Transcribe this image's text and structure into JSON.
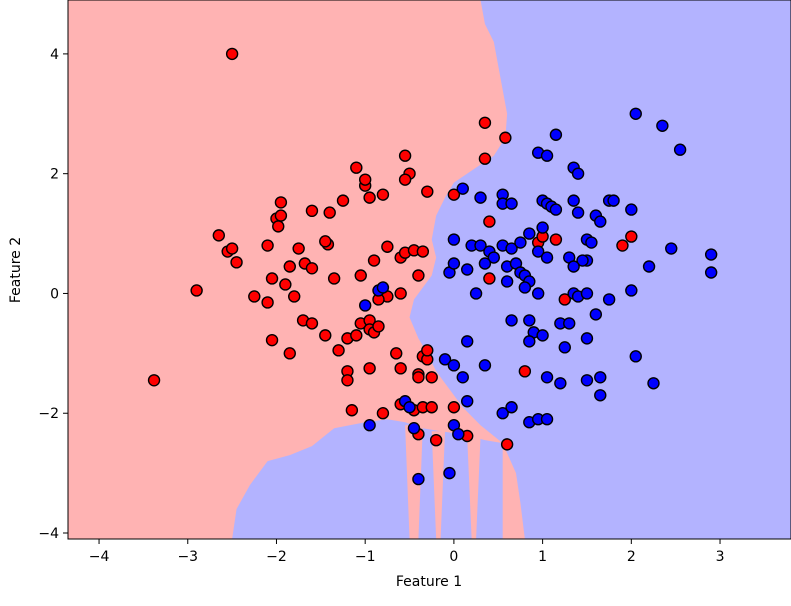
{
  "chart_data": {
    "type": "scatter",
    "title": "",
    "xlabel": "Feature 1",
    "ylabel": "Feature 2",
    "xlim": [
      -4.35,
      3.8
    ],
    "ylim": [
      -4.1,
      4.9
    ],
    "x_ticks": [
      -4,
      -3,
      -2,
      -1,
      0,
      1,
      2,
      3
    ],
    "y_ticks": [
      -4,
      -2,
      0,
      2,
      4
    ],
    "x_tick_labels": [
      "−4",
      "−3",
      "−2",
      "−1",
      "0",
      "1",
      "2",
      "3"
    ],
    "y_tick_labels": [
      "−4",
      "−2",
      "0",
      "2",
      "4"
    ],
    "grid": false,
    "legend": "none",
    "decision_regions": {
      "class_0_color": "#ffb3b3",
      "class_1_color": "#b3b3ff",
      "boundary_main": [
        [
          0.3,
          4.9
        ],
        [
          0.35,
          4.5
        ],
        [
          0.45,
          4.2
        ],
        [
          0.5,
          3.8
        ],
        [
          0.55,
          3.4
        ],
        [
          0.6,
          3.0
        ],
        [
          0.58,
          2.6
        ],
        [
          0.45,
          2.3
        ],
        [
          0.2,
          2.05
        ],
        [
          0.0,
          1.85
        ],
        [
          -0.1,
          1.6
        ],
        [
          -0.2,
          1.3
        ],
        [
          -0.25,
          0.9
        ],
        [
          -0.2,
          0.6
        ],
        [
          -0.25,
          0.3
        ],
        [
          -0.35,
          0.1
        ],
        [
          -0.45,
          -0.1
        ],
        [
          -0.5,
          -0.4
        ],
        [
          -0.4,
          -0.75
        ],
        [
          -0.3,
          -1.0
        ],
        [
          -0.2,
          -1.3
        ],
        [
          -0.05,
          -1.6
        ],
        [
          0.1,
          -1.9
        ],
        [
          0.3,
          -2.2
        ],
        [
          0.55,
          -2.5
        ],
        [
          0.7,
          -3.0
        ],
        [
          0.75,
          -3.5
        ],
        [
          0.8,
          -4.1
        ]
      ],
      "boundary_lower_blue": [
        [
          0.55,
          -2.5
        ],
        [
          0.35,
          -2.45
        ],
        [
          0.1,
          -2.35
        ],
        [
          -0.15,
          -2.3
        ],
        [
          -0.35,
          -2.25
        ],
        [
          -0.55,
          -2.15
        ],
        [
          -0.75,
          -2.1
        ],
        [
          -1.0,
          -2.15
        ],
        [
          -1.35,
          -2.25
        ],
        [
          -1.6,
          -2.55
        ],
        [
          -1.85,
          -2.7
        ],
        [
          -2.1,
          -2.8
        ],
        [
          -2.3,
          -3.2
        ],
        [
          -2.45,
          -3.6
        ],
        [
          -2.5,
          -4.1
        ]
      ]
    },
    "series": [
      {
        "name": "",
        "color": "#ff0000",
        "points": [
          [
            -2.5,
            4.0
          ],
          [
            -2.65,
            0.97
          ],
          [
            -2.55,
            0.7
          ],
          [
            -2.5,
            0.75
          ],
          [
            -2.45,
            0.52
          ],
          [
            -2.1,
            0.8
          ],
          [
            -2.0,
            1.25
          ],
          [
            -1.95,
            1.52
          ],
          [
            -1.95,
            1.3
          ],
          [
            -1.98,
            1.12
          ],
          [
            -1.6,
            1.38
          ],
          [
            -1.4,
            1.35
          ],
          [
            -1.75,
            0.75
          ],
          [
            -1.85,
            0.45
          ],
          [
            -1.68,
            0.5
          ],
          [
            -1.6,
            0.42
          ],
          [
            -1.42,
            0.82
          ],
          [
            -1.45,
            0.87
          ],
          [
            -1.35,
            0.25
          ],
          [
            -1.05,
            0.3
          ],
          [
            -0.9,
            0.55
          ],
          [
            -0.75,
            0.78
          ],
          [
            -0.6,
            0.6
          ],
          [
            -0.55,
            0.68
          ],
          [
            -0.45,
            0.72
          ],
          [
            -0.35,
            0.7
          ],
          [
            -0.4,
            0.3
          ],
          [
            -0.75,
            -0.05
          ],
          [
            -0.85,
            -0.1
          ],
          [
            -0.6,
            0.0
          ],
          [
            -2.05,
            0.25
          ],
          [
            -1.9,
            0.15
          ],
          [
            -2.25,
            -0.05
          ],
          [
            -2.1,
            -0.15
          ],
          [
            -1.8,
            -0.05
          ],
          [
            -1.7,
            -0.45
          ],
          [
            -1.6,
            -0.5
          ],
          [
            -1.45,
            -0.7
          ],
          [
            -1.2,
            -0.75
          ],
          [
            -1.1,
            -0.7
          ],
          [
            -1.05,
            -0.5
          ],
          [
            -0.95,
            -0.45
          ],
          [
            -0.95,
            -0.6
          ],
          [
            -0.9,
            -0.65
          ],
          [
            -0.85,
            -0.55
          ],
          [
            -1.3,
            -0.95
          ],
          [
            -1.85,
            -1.0
          ],
          [
            -2.05,
            -0.78
          ],
          [
            -2.9,
            0.05
          ],
          [
            -3.38,
            -1.45
          ],
          [
            -1.1,
            2.1
          ],
          [
            -1.0,
            1.8
          ],
          [
            -1.0,
            1.9
          ],
          [
            -0.95,
            1.6
          ],
          [
            -0.8,
            1.65
          ],
          [
            -0.55,
            2.3
          ],
          [
            -0.5,
            2.0
          ],
          [
            -0.55,
            1.9
          ],
          [
            -0.3,
            1.7
          ],
          [
            -1.25,
            1.55
          ],
          [
            -0.65,
            -1.0
          ],
          [
            -0.6,
            -1.25
          ],
          [
            -0.35,
            -1.05
          ],
          [
            -0.3,
            -1.1
          ],
          [
            -0.3,
            -0.95
          ],
          [
            -0.4,
            -1.35
          ],
          [
            -0.4,
            -1.4
          ],
          [
            -0.25,
            -1.4
          ],
          [
            -0.95,
            -1.25
          ],
          [
            -1.2,
            -1.3
          ],
          [
            -1.2,
            -1.45
          ],
          [
            -1.15,
            -1.95
          ],
          [
            -0.8,
            -2.0
          ],
          [
            -0.6,
            -1.85
          ],
          [
            -0.45,
            -1.95
          ],
          [
            -0.35,
            -1.9
          ],
          [
            -0.25,
            -1.9
          ],
          [
            -0.4,
            -2.35
          ],
          [
            -0.2,
            -2.45
          ],
          [
            0.0,
            -1.9
          ],
          [
            0.15,
            -2.38
          ],
          [
            0.35,
            2.85
          ],
          [
            0.35,
            2.25
          ],
          [
            0.58,
            2.6
          ],
          [
            0.0,
            1.65
          ],
          [
            0.4,
            1.2
          ],
          [
            0.4,
            0.25
          ],
          [
            0.95,
            0.85
          ],
          [
            1.0,
            0.95
          ],
          [
            1.15,
            0.9
          ],
          [
            1.25,
            -0.1
          ],
          [
            0.8,
            -1.3
          ],
          [
            1.9,
            0.8
          ],
          [
            2.0,
            0.95
          ],
          [
            0.6,
            -2.52
          ]
        ]
      },
      {
        "name": "",
        "color": "#0000ff",
        "points": [
          [
            2.05,
            3.0
          ],
          [
            2.35,
            2.8
          ],
          [
            2.55,
            2.4
          ],
          [
            1.15,
            2.65
          ],
          [
            0.95,
            2.35
          ],
          [
            1.05,
            2.3
          ],
          [
            1.35,
            2.1
          ],
          [
            1.4,
            2.0
          ],
          [
            0.1,
            1.75
          ],
          [
            0.3,
            1.6
          ],
          [
            0.55,
            1.65
          ],
          [
            0.55,
            1.5
          ],
          [
            0.65,
            1.5
          ],
          [
            1.0,
            1.55
          ],
          [
            1.05,
            1.5
          ],
          [
            1.1,
            1.45
          ],
          [
            1.15,
            1.4
          ],
          [
            1.35,
            1.55
          ],
          [
            1.4,
            1.35
          ],
          [
            1.75,
            1.55
          ],
          [
            1.8,
            1.55
          ],
          [
            1.6,
            1.3
          ],
          [
            1.65,
            1.2
          ],
          [
            2.0,
            1.4
          ],
          [
            0.0,
            0.9
          ],
          [
            0.2,
            0.8
          ],
          [
            0.3,
            0.8
          ],
          [
            0.4,
            0.7
          ],
          [
            0.45,
            0.6
          ],
          [
            0.35,
            0.5
          ],
          [
            0.55,
            0.8
          ],
          [
            0.65,
            0.75
          ],
          [
            0.75,
            0.85
          ],
          [
            0.85,
            1.0
          ],
          [
            1.0,
            1.1
          ],
          [
            0.95,
            0.7
          ],
          [
            1.05,
            0.6
          ],
          [
            1.3,
            0.6
          ],
          [
            1.5,
            0.9
          ],
          [
            1.55,
            0.85
          ],
          [
            1.5,
            0.55
          ],
          [
            1.45,
            0.55
          ],
          [
            1.35,
            0.45
          ],
          [
            2.45,
            0.75
          ],
          [
            2.2,
            0.45
          ],
          [
            2.9,
            0.65
          ],
          [
            2.9,
            0.35
          ],
          [
            -0.05,
            0.35
          ],
          [
            0.0,
            0.5
          ],
          [
            0.15,
            0.4
          ],
          [
            0.6,
            0.45
          ],
          [
            0.7,
            0.5
          ],
          [
            0.75,
            0.35
          ],
          [
            0.6,
            0.2
          ],
          [
            0.8,
            0.3
          ],
          [
            0.85,
            0.2
          ],
          [
            0.8,
            0.1
          ],
          [
            0.25,
            0.0
          ],
          [
            0.95,
            0.0
          ],
          [
            1.35,
            0.0
          ],
          [
            1.4,
            -0.05
          ],
          [
            1.5,
            0.0
          ],
          [
            1.75,
            -0.1
          ],
          [
            2.0,
            0.05
          ],
          [
            0.65,
            -0.45
          ],
          [
            0.85,
            -0.45
          ],
          [
            1.2,
            -0.5
          ],
          [
            1.3,
            -0.5
          ],
          [
            1.6,
            -0.35
          ],
          [
            0.9,
            -0.65
          ],
          [
            1.0,
            -0.7
          ],
          [
            0.85,
            -0.8
          ],
          [
            0.15,
            -0.8
          ],
          [
            -1.0,
            -0.2
          ],
          [
            -0.85,
            0.05
          ],
          [
            -0.8,
            0.1
          ],
          [
            1.25,
            -0.9
          ],
          [
            1.5,
            -0.75
          ],
          [
            -0.1,
            -1.1
          ],
          [
            0.0,
            -1.2
          ],
          [
            0.1,
            -1.4
          ],
          [
            0.35,
            -1.2
          ],
          [
            2.05,
            -1.05
          ],
          [
            1.05,
            -1.4
          ],
          [
            1.2,
            -1.5
          ],
          [
            1.5,
            -1.45
          ],
          [
            1.65,
            -1.4
          ],
          [
            1.65,
            -1.7
          ],
          [
            2.25,
            -1.5
          ],
          [
            0.15,
            -1.8
          ],
          [
            0.55,
            -2.0
          ],
          [
            0.65,
            -1.9
          ],
          [
            0.85,
            -2.15
          ],
          [
            0.95,
            -2.1
          ],
          [
            1.05,
            -2.1
          ],
          [
            -0.95,
            -2.2
          ],
          [
            -0.55,
            -1.8
          ],
          [
            -0.5,
            -1.9
          ],
          [
            -0.45,
            -2.25
          ],
          [
            0.0,
            -2.2
          ],
          [
            0.05,
            -2.35
          ],
          [
            -0.05,
            -3.0
          ],
          [
            -0.4,
            -3.1
          ]
        ]
      }
    ]
  }
}
